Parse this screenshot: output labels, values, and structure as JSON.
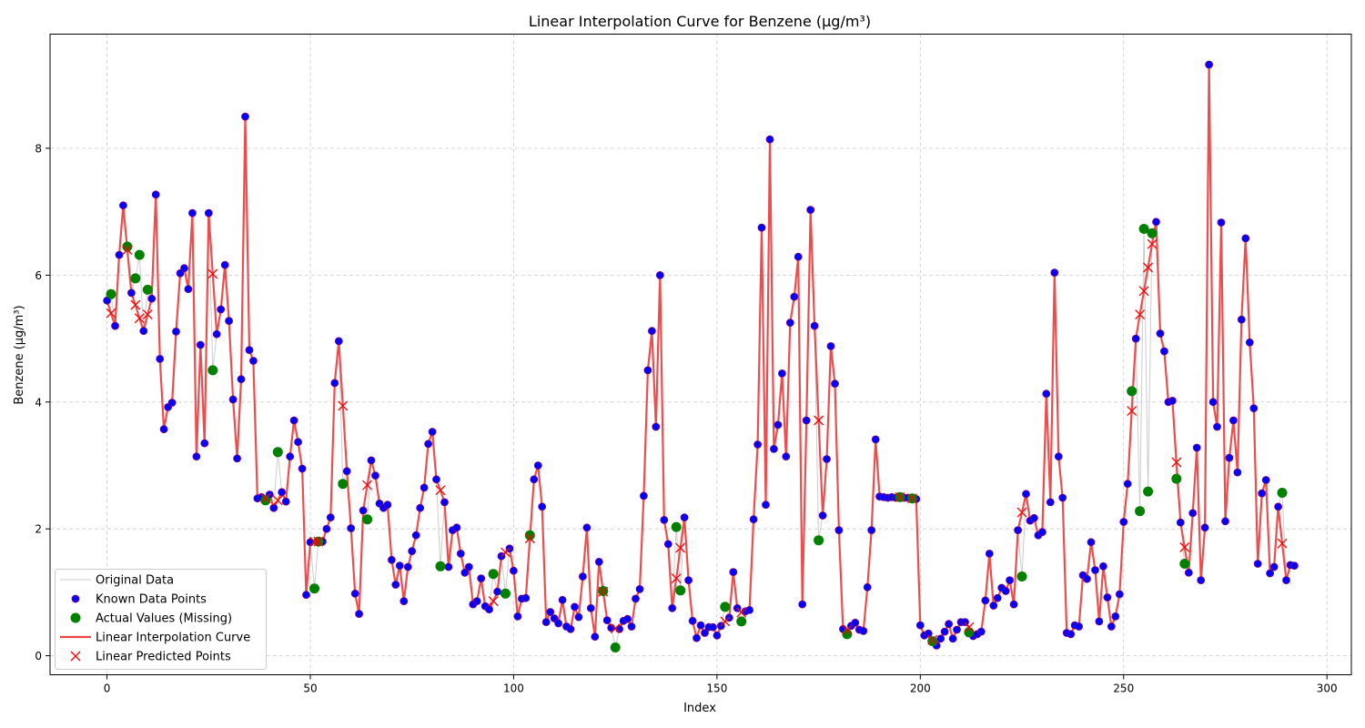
{
  "chart_data": {
    "type": "line",
    "title": "Linear Interpolation Curve for Benzene (µg/m³)",
    "xlabel": "Index",
    "ylabel": "Benzene (µg/m³)",
    "xlim": [
      -14,
      306
    ],
    "ylim": [
      -0.3,
      9.8
    ],
    "xticks": [
      0,
      50,
      100,
      150,
      200,
      250,
      300
    ],
    "yticks": [
      0,
      2,
      4,
      6,
      8
    ],
    "grid": true,
    "legend_position": "lower-left",
    "legend": [
      {
        "label": "Original Data",
        "kind": "thin-line",
        "color": "#cccccc"
      },
      {
        "label": "Known Data Points",
        "kind": "dot",
        "color": "#0000ff"
      },
      {
        "label": "Actual Values (Missing)",
        "kind": "big-dot",
        "color": "#008000"
      },
      {
        "label": "Linear Interpolation Curve",
        "kind": "thick-line",
        "color": "#ee4444"
      },
      {
        "label": "Linear Predicted Points",
        "kind": "cross",
        "color": "#ff0000"
      }
    ],
    "colors": {
      "original": "#cccccc",
      "known": "#0000ff",
      "known_edge": "#800080",
      "actual": "#008000",
      "interp": "#ee4444",
      "predicted": "#ff0000",
      "grid": "#cccccc"
    },
    "series": {
      "full": [
        5.6,
        5.7,
        5.2,
        6.32,
        7.1,
        6.45,
        5.72,
        5.95,
        6.32,
        5.12,
        5.77,
        5.63,
        7.27,
        4.68,
        3.57,
        3.92,
        3.99,
        5.11,
        6.03,
        6.11,
        5.78,
        6.98,
        3.14,
        4.9,
        3.35,
        6.98,
        4.5,
        5.07,
        5.46,
        6.16,
        5.28,
        4.04,
        3.11,
        4.36,
        8.5,
        4.82,
        4.65,
        2.48,
        2.5,
        2.45,
        2.54,
        2.33,
        3.21,
        2.58,
        2.43,
        3.14,
        3.71,
        3.37,
        2.95,
        0.96,
        1.79,
        1.06,
        1.8,
        1.8,
        2.0,
        2.18,
        4.3,
        4.96,
        2.71,
        2.91,
        2.01,
        0.98,
        0.66,
        2.29,
        2.15,
        3.08,
        2.84,
        2.4,
        2.33,
        2.38,
        1.51,
        1.12,
        1.42,
        0.86,
        1.4,
        1.65,
        1.9,
        2.33,
        2.65,
        3.34,
        3.53,
        2.78,
        1.41,
        2.42,
        1.4,
        1.98,
        2.02,
        1.61,
        1.31,
        1.4,
        0.81,
        0.86,
        1.22,
        0.78,
        0.73,
        1.29,
        1.01,
        1.57,
        0.98,
        1.69,
        1.34,
        0.62,
        0.9,
        0.91,
        1.9,
        2.78,
        3.0,
        2.35,
        0.53,
        0.69,
        0.59,
        0.51,
        0.88,
        0.46,
        0.42,
        0.77,
        0.61,
        1.25,
        2.02,
        0.75,
        0.3,
        1.48,
        1.02,
        0.56,
        0.44,
        0.13,
        0.42,
        0.55,
        0.58,
        0.46,
        0.9,
        1.05,
        2.52,
        4.5,
        5.12,
        3.61,
        6.0,
        2.14,
        1.76,
        0.75,
        2.03,
        1.03,
        2.18,
        1.19,
        0.55,
        0.28,
        0.48,
        0.36,
        0.45,
        0.45,
        0.32,
        0.47,
        0.77,
        0.6,
        1.32,
        0.75,
        0.54,
        0.7,
        0.72,
        2.15,
        3.33,
        6.75,
        2.38,
        8.14,
        3.26,
        3.64,
        4.45,
        3.14,
        5.25,
        5.66,
        6.29,
        0.81,
        3.71,
        7.03,
        5.2,
        1.82,
        2.21,
        3.1,
        4.88,
        4.29,
        1.98,
        0.42,
        0.34,
        0.47,
        0.52,
        0.41,
        0.39,
        1.08,
        1.98,
        3.41,
        2.51,
        2.5,
        2.49,
        2.5,
        2.49,
        2.5,
        2.49,
        2.49,
        2.48,
        2.47,
        0.48,
        0.32,
        0.35,
        0.23,
        0.16,
        0.27,
        0.38,
        0.5,
        0.27,
        0.41,
        0.53,
        0.53,
        0.37,
        0.31,
        0.34,
        0.38,
        0.87,
        1.61,
        0.79,
        0.91,
        1.07,
        1.02,
        1.19,
        0.81,
        1.98,
        1.25,
        2.55,
        2.13,
        2.17,
        1.9,
        1.95,
        4.13,
        2.42,
        6.04,
        3.14,
        2.49,
        0.36,
        0.34,
        0.48,
        0.46,
        1.27,
        1.21,
        1.79,
        1.35,
        0.54,
        1.41,
        0.92,
        0.46,
        0.62,
        0.97,
        2.11,
        2.71,
        4.17,
        5.0,
        2.28,
        6.73,
        2.59,
        6.66,
        6.84,
        5.08,
        4.8,
        4.0,
        4.02,
        2.79,
        2.1,
        1.45,
        1.31,
        2.25,
        3.28,
        1.19,
        2.02,
        9.32,
        4.0,
        3.61,
        6.83,
        2.12,
        3.12,
        3.71,
        2.89,
        5.3,
        6.58,
        4.94,
        3.9,
        1.45,
        2.56,
        2.77,
        1.3,
        1.4,
        2.35,
        2.57,
        1.19,
        1.43,
        1.42
      ],
      "missing_indices": [
        1,
        5,
        7,
        8,
        10,
        26,
        39,
        42,
        51,
        52,
        58,
        64,
        82,
        95,
        98,
        104,
        122,
        125,
        140,
        141,
        152,
        156,
        175,
        182,
        195,
        198,
        203,
        212,
        225,
        252,
        254,
        255,
        256,
        257,
        263,
        265,
        289
      ],
      "predicted": [
        5.4,
        6.4,
        5.53,
        5.32,
        5.38,
        6.02,
        2.48,
        2.45,
        1.8,
        1.8,
        3.94,
        2.69,
        2.61,
        0.86,
        1.63,
        1.85,
        1.01,
        0.43,
        1.22,
        1.7,
        0.54,
        0.68,
        3.71,
        0.41,
        2.5,
        2.48,
        0.25,
        0.45,
        2.26,
        3.86,
        5.38,
        5.75,
        6.12,
        6.49,
        3.05,
        1.71,
        1.77
      ]
    }
  }
}
